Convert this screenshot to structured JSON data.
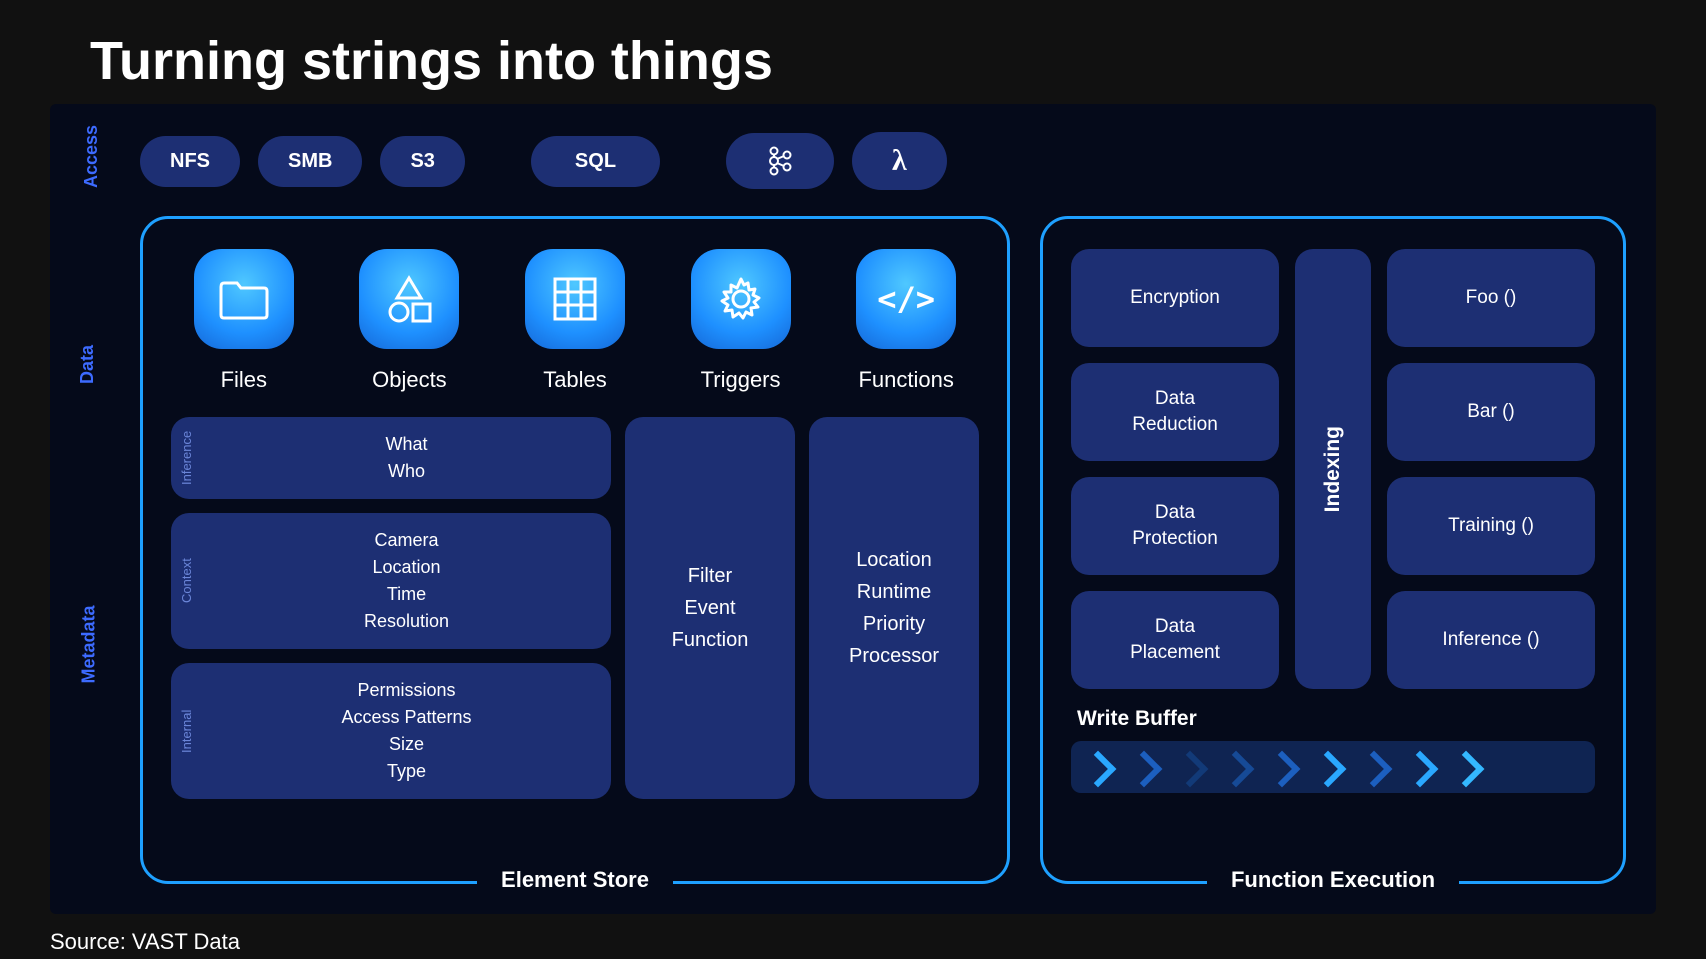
{
  "title": "Turning strings into things",
  "source": "Source: VAST Data",
  "colors": {
    "page_bg": "#111111",
    "diagram_bg": "#050a1a",
    "panel_border": "#1ea0ff",
    "pill_bg": "#1d2f73",
    "box_bg": "#1d2f73",
    "side_label": "#3d6bff",
    "icon_grad_top": "#4fc8ff",
    "icon_grad_mid": "#1e90ff",
    "icon_grad_bot": "#1567d6",
    "chevron_bg": "#0f2452"
  },
  "side_labels": {
    "access": "Access",
    "data": "Data",
    "metadata": "Metadata"
  },
  "access_pills": [
    "NFS",
    "SMB",
    "S3",
    "SQL"
  ],
  "access_icons": [
    "kafka",
    "lambda"
  ],
  "element_store": {
    "label": "Element Store",
    "items": [
      {
        "icon": "folder",
        "label": "Files"
      },
      {
        "icon": "shapes",
        "label": "Objects"
      },
      {
        "icon": "table",
        "label": "Tables"
      },
      {
        "icon": "gear",
        "label": "Triggers"
      },
      {
        "icon": "code",
        "label": "Functions"
      }
    ],
    "metadata": {
      "inference": {
        "tag": "Inference",
        "lines": [
          "What",
          "Who"
        ]
      },
      "context": {
        "tag": "Context",
        "lines": [
          "Camera",
          "Location",
          "Time",
          "Resolution"
        ]
      },
      "internal": {
        "tag": "Internal",
        "lines": [
          "Permissions",
          "Access Patterns",
          "Size",
          "Type"
        ]
      },
      "triggers": [
        "Filter",
        "Event",
        "Function"
      ],
      "functions": [
        "Location",
        "Runtime",
        "Priority",
        "Processor"
      ]
    }
  },
  "function_execution": {
    "label": "Function Execution",
    "left_col": [
      "Encryption",
      "Data\nReduction",
      "Data\nProtection",
      "Data\nPlacement"
    ],
    "middle": "Indexing",
    "right_col": [
      "Foo ()",
      "Bar ()",
      "Training ()",
      "Inference ()"
    ],
    "write_buffer_label": "Write Buffer",
    "chevron_colors": [
      "#2aa8ff",
      "#1c5fbf",
      "#123a78",
      "#164a96",
      "#1c5fbf",
      "#2aa8ff",
      "#1c5fbf",
      "#2aa8ff",
      "#34b8ff"
    ]
  }
}
